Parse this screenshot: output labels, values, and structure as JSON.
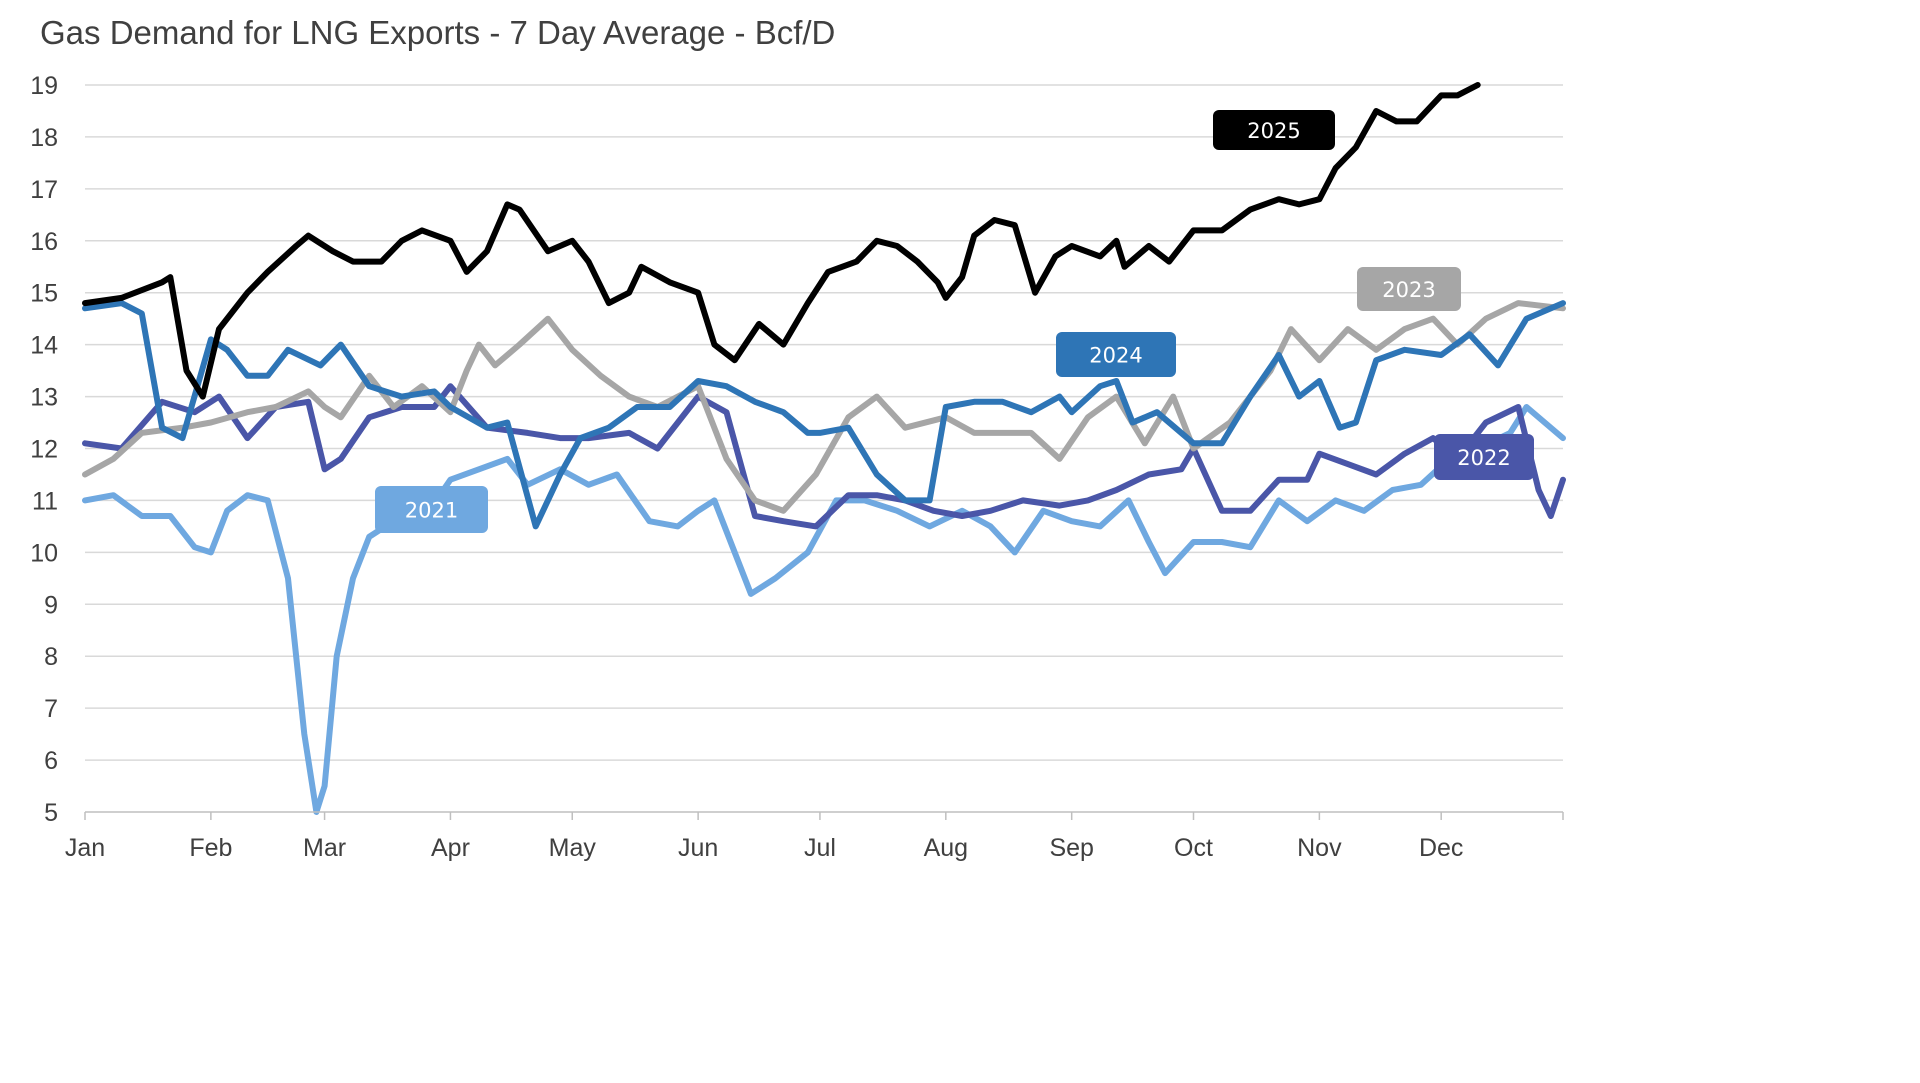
{
  "chart_data": {
    "type": "line",
    "title": "Gas Demand for LNG Exports - 7 Day Average - Bcf/D",
    "xlabel": "",
    "ylabel": "",
    "ylim": [
      5,
      19
    ],
    "yticks": [
      "5",
      "6",
      "7",
      "8",
      "9",
      "10",
      "11",
      "12",
      "13",
      "14",
      "15",
      "16",
      "17",
      "18",
      "19"
    ],
    "xticks": [
      "Jan",
      "Feb",
      "Mar",
      "Apr",
      "May",
      "Jun",
      "Jul",
      "Aug",
      "Sep",
      "Oct",
      "Nov",
      "Dec"
    ],
    "grid": true,
    "legend": "inline labels",
    "series": [
      {
        "name": "2021",
        "color": "#6fa8e0",
        "points": [
          [
            "01-01",
            11.0
          ],
          [
            "01-08",
            11.1
          ],
          [
            "01-15",
            10.7
          ],
          [
            "01-22",
            10.7
          ],
          [
            "01-28",
            10.1
          ],
          [
            "02-01",
            10.0
          ],
          [
            "02-05",
            10.8
          ],
          [
            "02-10",
            11.1
          ],
          [
            "02-15",
            11.0
          ],
          [
            "02-20",
            9.5
          ],
          [
            "02-24",
            6.5
          ],
          [
            "02-27",
            5.0
          ],
          [
            "03-01",
            5.5
          ],
          [
            "03-04",
            8.0
          ],
          [
            "03-08",
            9.5
          ],
          [
            "03-12",
            10.3
          ],
          [
            "03-18",
            10.6
          ],
          [
            "03-25",
            10.6
          ],
          [
            "04-01",
            11.4
          ],
          [
            "04-08",
            11.6
          ],
          [
            "04-15",
            11.8
          ],
          [
            "04-20",
            11.3
          ],
          [
            "04-28",
            11.6
          ],
          [
            "05-05",
            11.3
          ],
          [
            "05-12",
            11.5
          ],
          [
            "05-20",
            10.6
          ],
          [
            "05-27",
            10.5
          ],
          [
            "06-01",
            10.8
          ],
          [
            "06-05",
            11.0
          ],
          [
            "06-10",
            10.0
          ],
          [
            "06-14",
            9.2
          ],
          [
            "06-20",
            9.5
          ],
          [
            "06-28",
            10.0
          ],
          [
            "07-05",
            11.0
          ],
          [
            "07-12",
            11.0
          ],
          [
            "07-20",
            10.8
          ],
          [
            "07-28",
            10.5
          ],
          [
            "08-05",
            10.8
          ],
          [
            "08-12",
            10.5
          ],
          [
            "08-18",
            10.0
          ],
          [
            "08-25",
            10.8
          ],
          [
            "09-01",
            10.6
          ],
          [
            "09-08",
            10.5
          ],
          [
            "09-15",
            11.0
          ],
          [
            "09-20",
            10.2
          ],
          [
            "09-24",
            9.6
          ],
          [
            "10-01",
            10.2
          ],
          [
            "10-08",
            10.2
          ],
          [
            "10-15",
            10.1
          ],
          [
            "10-22",
            11.0
          ],
          [
            "10-29",
            10.6
          ],
          [
            "11-05",
            11.0
          ],
          [
            "11-12",
            10.8
          ],
          [
            "11-19",
            11.2
          ],
          [
            "11-26",
            11.3
          ],
          [
            "12-03",
            11.8
          ],
          [
            "12-10",
            12.0
          ],
          [
            "12-18",
            12.3
          ],
          [
            "12-22",
            12.8
          ],
          [
            "12-31",
            12.2
          ]
        ]
      },
      {
        "name": "2022",
        "color": "#4a56a8",
        "points": [
          [
            "01-01",
            12.1
          ],
          [
            "01-10",
            12.0
          ],
          [
            "01-20",
            12.9
          ],
          [
            "01-28",
            12.7
          ],
          [
            "02-03",
            13.0
          ],
          [
            "02-10",
            12.2
          ],
          [
            "02-17",
            12.8
          ],
          [
            "02-25",
            12.9
          ],
          [
            "03-01",
            11.6
          ],
          [
            "03-05",
            11.8
          ],
          [
            "03-12",
            12.6
          ],
          [
            "03-20",
            12.8
          ],
          [
            "03-28",
            12.8
          ],
          [
            "04-01",
            13.2
          ],
          [
            "04-10",
            12.4
          ],
          [
            "04-20",
            12.3
          ],
          [
            "04-28",
            12.2
          ],
          [
            "05-05",
            12.2
          ],
          [
            "05-15",
            12.3
          ],
          [
            "05-22",
            12.0
          ],
          [
            "06-01",
            13.0
          ],
          [
            "06-08",
            12.7
          ],
          [
            "06-15",
            10.7
          ],
          [
            "06-22",
            10.6
          ],
          [
            "06-30",
            10.5
          ],
          [
            "07-08",
            11.1
          ],
          [
            "07-15",
            11.1
          ],
          [
            "07-22",
            11.0
          ],
          [
            "07-29",
            10.8
          ],
          [
            "08-05",
            10.7
          ],
          [
            "08-12",
            10.8
          ],
          [
            "08-20",
            11.0
          ],
          [
            "08-29",
            10.9
          ],
          [
            "09-05",
            11.0
          ],
          [
            "09-12",
            11.2
          ],
          [
            "09-20",
            11.5
          ],
          [
            "09-28",
            11.6
          ],
          [
            "10-01",
            12.0
          ],
          [
            "10-08",
            10.8
          ],
          [
            "10-15",
            10.8
          ],
          [
            "10-22",
            11.4
          ],
          [
            "10-29",
            11.4
          ],
          [
            "11-01",
            11.9
          ],
          [
            "11-08",
            11.7
          ],
          [
            "11-15",
            11.5
          ],
          [
            "11-22",
            11.9
          ],
          [
            "11-29",
            12.2
          ],
          [
            "12-05",
            11.8
          ],
          [
            "12-12",
            12.5
          ],
          [
            "12-20",
            12.8
          ],
          [
            "12-25",
            11.2
          ],
          [
            "12-28",
            10.7
          ],
          [
            "12-31",
            11.4
          ]
        ]
      },
      {
        "name": "2023",
        "color": "#a6a6a6",
        "points": [
          [
            "01-01",
            11.5
          ],
          [
            "01-08",
            11.8
          ],
          [
            "01-15",
            12.3
          ],
          [
            "01-25",
            12.4
          ],
          [
            "02-01",
            12.5
          ],
          [
            "02-10",
            12.7
          ],
          [
            "02-17",
            12.8
          ],
          [
            "02-25",
            13.1
          ],
          [
            "03-01",
            12.8
          ],
          [
            "03-05",
            12.6
          ],
          [
            "03-12",
            13.4
          ],
          [
            "03-18",
            12.8
          ],
          [
            "03-25",
            13.2
          ],
          [
            "04-01",
            12.7
          ],
          [
            "04-05",
            13.5
          ],
          [
            "04-08",
            14.0
          ],
          [
            "04-12",
            13.6
          ],
          [
            "04-18",
            14.0
          ],
          [
            "04-25",
            14.5
          ],
          [
            "05-01",
            13.9
          ],
          [
            "05-08",
            13.4
          ],
          [
            "05-15",
            13.0
          ],
          [
            "05-22",
            12.8
          ],
          [
            "06-01",
            13.2
          ],
          [
            "06-08",
            11.8
          ],
          [
            "06-15",
            11.0
          ],
          [
            "06-22",
            10.8
          ],
          [
            "06-30",
            11.5
          ],
          [
            "07-08",
            12.6
          ],
          [
            "07-15",
            13.0
          ],
          [
            "07-22",
            12.4
          ],
          [
            "08-01",
            12.6
          ],
          [
            "08-08",
            12.3
          ],
          [
            "08-15",
            12.3
          ],
          [
            "08-22",
            12.3
          ],
          [
            "08-29",
            11.8
          ],
          [
            "09-05",
            12.6
          ],
          [
            "09-12",
            13.0
          ],
          [
            "09-19",
            12.1
          ],
          [
            "09-26",
            13.0
          ],
          [
            "10-01",
            12.0
          ],
          [
            "10-10",
            12.5
          ],
          [
            "10-20",
            13.5
          ],
          [
            "10-25",
            14.3
          ],
          [
            "11-01",
            13.7
          ],
          [
            "11-08",
            14.3
          ],
          [
            "11-15",
            13.9
          ],
          [
            "11-22",
            14.3
          ],
          [
            "11-29",
            14.5
          ],
          [
            "12-05",
            14.0
          ],
          [
            "12-12",
            14.5
          ],
          [
            "12-20",
            14.8
          ],
          [
            "12-31",
            14.7
          ]
        ]
      },
      {
        "name": "2024",
        "color": "#2e75b6",
        "points": [
          [
            "01-01",
            14.7
          ],
          [
            "01-10",
            14.8
          ],
          [
            "01-15",
            14.6
          ],
          [
            "01-20",
            12.4
          ],
          [
            "01-25",
            12.2
          ],
          [
            "02-01",
            14.1
          ],
          [
            "02-05",
            13.9
          ],
          [
            "02-10",
            13.4
          ],
          [
            "02-15",
            13.4
          ],
          [
            "02-20",
            13.9
          ],
          [
            "02-28",
            13.6
          ],
          [
            "03-05",
            14.0
          ],
          [
            "03-12",
            13.2
          ],
          [
            "03-20",
            13.0
          ],
          [
            "03-28",
            13.1
          ],
          [
            "04-01",
            12.8
          ],
          [
            "04-10",
            12.4
          ],
          [
            "04-15",
            12.5
          ],
          [
            "04-22",
            10.5
          ],
          [
            "04-28",
            11.5
          ],
          [
            "05-03",
            12.2
          ],
          [
            "05-10",
            12.4
          ],
          [
            "05-17",
            12.8
          ],
          [
            "05-25",
            12.8
          ],
          [
            "06-01",
            13.3
          ],
          [
            "06-08",
            13.2
          ],
          [
            "06-15",
            12.9
          ],
          [
            "06-22",
            12.7
          ],
          [
            "06-28",
            12.3
          ],
          [
            "07-01",
            12.3
          ],
          [
            "07-08",
            12.4
          ],
          [
            "07-15",
            11.5
          ],
          [
            "07-22",
            11.0
          ],
          [
            "07-28",
            11.0
          ],
          [
            "08-01",
            12.8
          ],
          [
            "08-08",
            12.9
          ],
          [
            "08-15",
            12.9
          ],
          [
            "08-22",
            12.7
          ],
          [
            "08-29",
            13.0
          ],
          [
            "09-01",
            12.7
          ],
          [
            "09-08",
            13.2
          ],
          [
            "09-12",
            13.3
          ],
          [
            "09-16",
            12.5
          ],
          [
            "09-22",
            12.7
          ],
          [
            "10-01",
            12.1
          ],
          [
            "10-08",
            12.1
          ],
          [
            "10-15",
            13.0
          ],
          [
            "10-22",
            13.8
          ],
          [
            "10-27",
            13.0
          ],
          [
            "11-01",
            13.3
          ],
          [
            "11-06",
            12.4
          ],
          [
            "11-10",
            12.5
          ],
          [
            "11-15",
            13.7
          ],
          [
            "11-22",
            13.9
          ],
          [
            "12-01",
            13.8
          ],
          [
            "12-08",
            14.2
          ],
          [
            "12-15",
            13.6
          ],
          [
            "12-22",
            14.5
          ],
          [
            "12-31",
            14.8
          ]
        ]
      },
      {
        "name": "2025",
        "color": "#000000",
        "points": [
          [
            "01-01",
            14.8
          ],
          [
            "01-10",
            14.9
          ],
          [
            "01-20",
            15.2
          ],
          [
            "01-22",
            15.3
          ],
          [
            "01-26",
            13.5
          ],
          [
            "01-30",
            13.0
          ],
          [
            "02-03",
            14.3
          ],
          [
            "02-10",
            15.0
          ],
          [
            "02-15",
            15.4
          ],
          [
            "02-22",
            15.9
          ],
          [
            "02-25",
            16.1
          ],
          [
            "03-03",
            15.8
          ],
          [
            "03-08",
            15.6
          ],
          [
            "03-15",
            15.6
          ],
          [
            "03-20",
            16.0
          ],
          [
            "03-25",
            16.2
          ],
          [
            "04-01",
            16.0
          ],
          [
            "04-05",
            15.4
          ],
          [
            "04-10",
            15.8
          ],
          [
            "04-15",
            16.7
          ],
          [
            "04-18",
            16.6
          ],
          [
            "04-25",
            15.8
          ],
          [
            "05-01",
            16.0
          ],
          [
            "05-05",
            15.6
          ],
          [
            "05-10",
            14.8
          ],
          [
            "05-15",
            15.0
          ],
          [
            "05-18",
            15.5
          ],
          [
            "05-25",
            15.2
          ],
          [
            "06-01",
            15.0
          ],
          [
            "06-05",
            14.0
          ],
          [
            "06-10",
            13.7
          ],
          [
            "06-16",
            14.4
          ],
          [
            "06-22",
            14.0
          ],
          [
            "06-28",
            14.8
          ],
          [
            "07-03",
            15.4
          ],
          [
            "07-10",
            15.6
          ],
          [
            "07-15",
            16.0
          ],
          [
            "07-20",
            15.9
          ],
          [
            "07-25",
            15.6
          ],
          [
            "07-30",
            15.2
          ],
          [
            "08-01",
            14.9
          ],
          [
            "08-05",
            15.3
          ],
          [
            "08-08",
            16.1
          ],
          [
            "08-13",
            16.4
          ],
          [
            "08-18",
            16.3
          ],
          [
            "08-23",
            15.0
          ],
          [
            "08-28",
            15.7
          ],
          [
            "09-01",
            15.9
          ],
          [
            "09-08",
            15.7
          ],
          [
            "09-12",
            16.0
          ],
          [
            "09-14",
            15.5
          ],
          [
            "09-20",
            15.9
          ],
          [
            "09-25",
            15.6
          ],
          [
            "10-01",
            16.2
          ],
          [
            "10-08",
            16.2
          ],
          [
            "10-15",
            16.6
          ],
          [
            "10-22",
            16.8
          ],
          [
            "10-27",
            16.7
          ],
          [
            "11-01",
            16.8
          ],
          [
            "11-05",
            17.4
          ],
          [
            "11-10",
            17.8
          ],
          [
            "11-15",
            18.5
          ],
          [
            "11-20",
            18.3
          ],
          [
            "11-25",
            18.3
          ],
          [
            "12-01",
            18.8
          ],
          [
            "12-05",
            18.8
          ],
          [
            "12-10",
            19.0
          ]
        ]
      }
    ],
    "annotations": [
      {
        "text": "2025",
        "series": "2025"
      },
      {
        "text": "2023",
        "series": "2023"
      },
      {
        "text": "2024",
        "series": "2024"
      },
      {
        "text": "2021",
        "series": "2021"
      },
      {
        "text": "2022",
        "series": "2022"
      }
    ]
  }
}
